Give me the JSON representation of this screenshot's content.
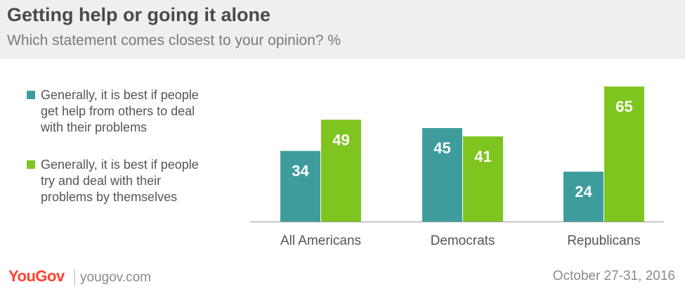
{
  "header": {
    "title": "Getting help or going it alone",
    "subtitle": "Which statement comes closest to your opinion? %"
  },
  "chart_data": {
    "type": "bar",
    "title": "Getting help or going it alone",
    "subtitle": "Which statement comes closest to your opinion? %",
    "categories": [
      "All Americans",
      "Democrats",
      "Republicans"
    ],
    "series": [
      {
        "name": "Generally, it is best if people get help from others to deal with their problems",
        "legend_lines": [
          "Generally, it is best if people",
          "get help from others to deal",
          "with their problems"
        ],
        "color": "#3f9c9c",
        "values": [
          34,
          45,
          24
        ]
      },
      {
        "name": "Generally, it is best if people try and deal with their problems by themselves",
        "legend_lines": [
          "Generally, it is best if people",
          "try and deal with their",
          "problems by themselves"
        ],
        "color": "#7ec51f",
        "values": [
          49,
          41,
          65
        ]
      }
    ],
    "ylim": [
      0,
      65
    ],
    "grid": false,
    "data_labels": true,
    "legend_position": "left"
  },
  "footer": {
    "brand_you": "You",
    "brand_gov": "Gov",
    "site": "yougov.com",
    "date": "October 27-31, 2016"
  }
}
